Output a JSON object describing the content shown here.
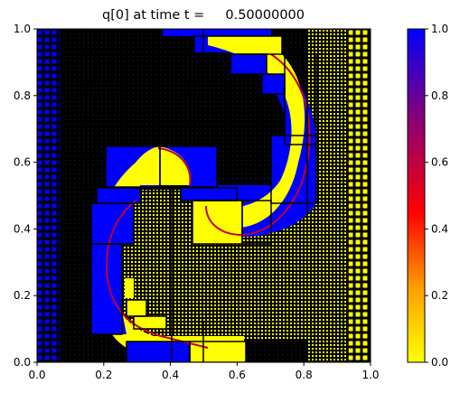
{
  "chart_data": {
    "type": "heatmap",
    "title": "q[0] at time t =     0.50000000",
    "xlabel": "",
    "ylabel": "",
    "xlim": [
      0.0,
      1.0
    ],
    "ylim": [
      0.0,
      1.0
    ],
    "x_ticks": [
      "0.0",
      "0.2",
      "0.4",
      "0.6",
      "0.8",
      "1.0"
    ],
    "y_ticks": [
      "0.0",
      "0.2",
      "0.4",
      "0.6",
      "0.8",
      "1.0"
    ],
    "colorbar": {
      "range": [
        0.0,
        1.0
      ],
      "ticks": [
        "0.0",
        "0.2",
        "0.4",
        "0.6",
        "0.8",
        "1.0"
      ],
      "colormap": [
        "#ffff00",
        "#ffa000",
        "#ff0000",
        "#800080",
        "#0000ff"
      ]
    },
    "field": {
      "description_value_high": 1.0,
      "description_value_low": 0.0,
      "grid_overlay": "adaptive mesh refinement patches"
    }
  }
}
